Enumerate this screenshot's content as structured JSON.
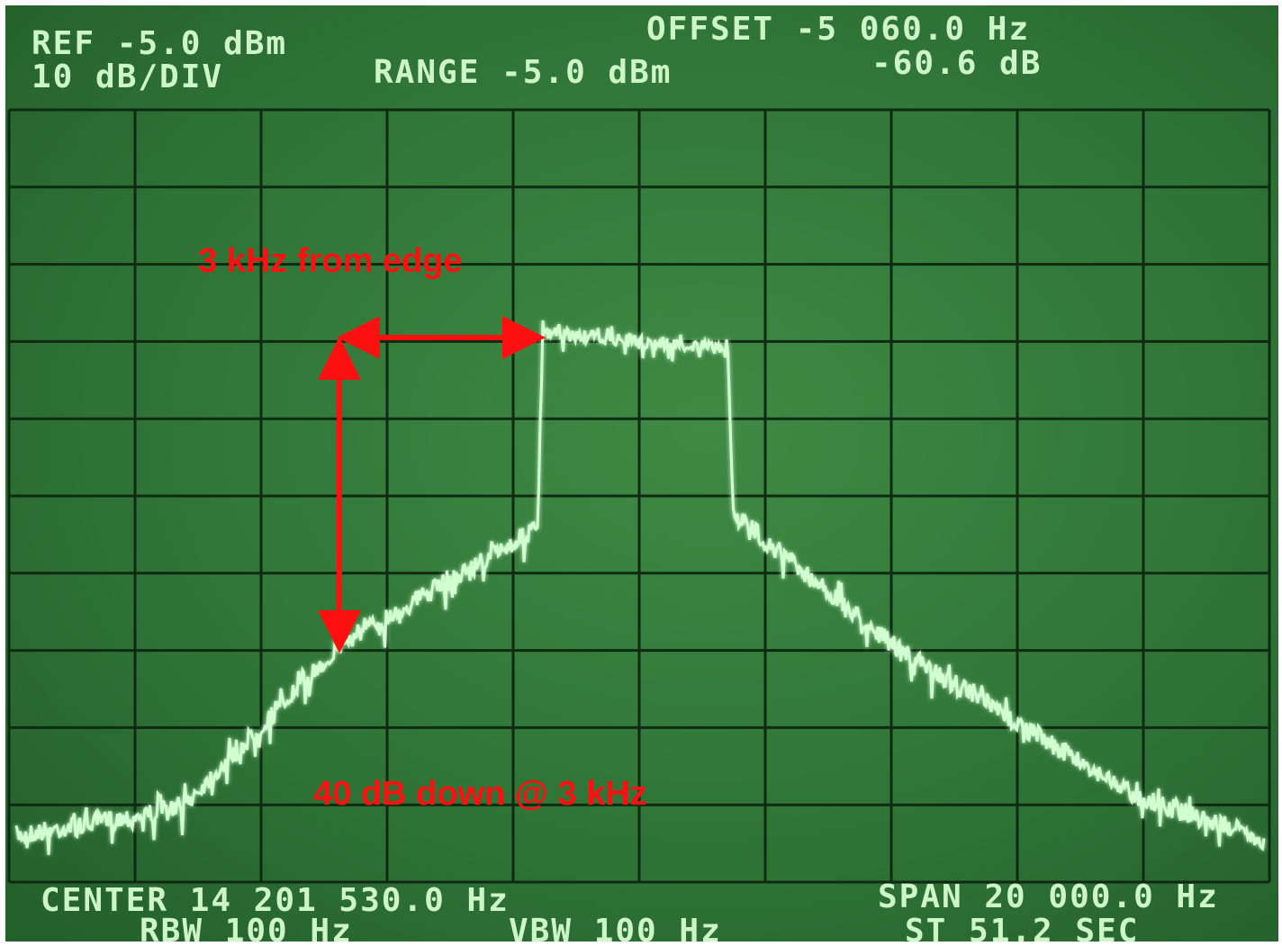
{
  "header": {
    "ref": "REF -5.0 dBm",
    "scale": "10 dB/DIV",
    "range": "RANGE -5.0 dBm",
    "offset": "OFFSET -5 060.0 Hz",
    "marker": "-60.6 dB"
  },
  "footer": {
    "center": "CENTER 14 201 530.0 Hz",
    "rbw": "RBW 100 Hz",
    "vbw": "VBW 100 Hz",
    "span": "SPAN 20 000.0 Hz",
    "sweep": "ST 51.2 SEC"
  },
  "annotations": {
    "width": "3 kHz from edge",
    "depth": "40 dB down @ 3 kHz"
  }
}
